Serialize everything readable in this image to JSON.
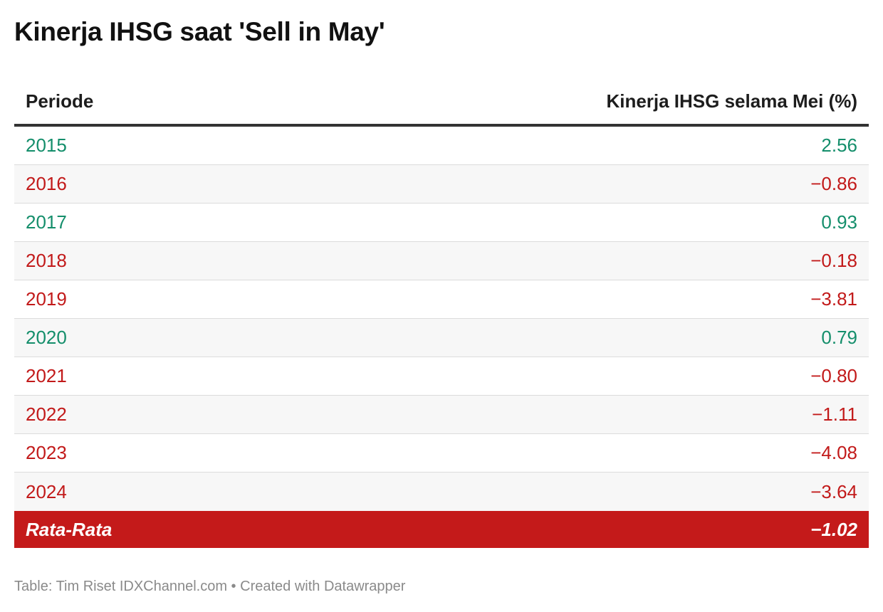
{
  "title": "Kinerja IHSG saat 'Sell in May'",
  "footer": "Table: Tim Riset IDXChannel.com • Created with Datawrapper",
  "colors": {
    "positive": "#148e6b",
    "negative": "#c21a1a",
    "total_bg": "#c41a1a"
  },
  "chart_data": {
    "type": "table",
    "title": "Kinerja IHSG saat 'Sell in May'",
    "columns": [
      "Periode",
      "Kinerja IHSG selama Mei (%)"
    ],
    "rows": [
      {
        "period": "2015",
        "value": "2.56",
        "sign": "pos"
      },
      {
        "period": "2016",
        "value": "−0.86",
        "sign": "neg"
      },
      {
        "period": "2017",
        "value": "0.93",
        "sign": "pos"
      },
      {
        "period": "2018",
        "value": "−0.18",
        "sign": "neg"
      },
      {
        "period": "2019",
        "value": "−3.81",
        "sign": "neg"
      },
      {
        "period": "2020",
        "value": "0.79",
        "sign": "pos"
      },
      {
        "period": "2021",
        "value": "−0.80",
        "sign": "neg"
      },
      {
        "period": "2022",
        "value": "−1.11",
        "sign": "neg"
      },
      {
        "period": "2023",
        "value": "−4.08",
        "sign": "neg"
      },
      {
        "period": "2024",
        "value": "−3.64",
        "sign": "neg"
      }
    ],
    "total": {
      "label": "Rata-Rata",
      "value": "−1.02"
    }
  }
}
